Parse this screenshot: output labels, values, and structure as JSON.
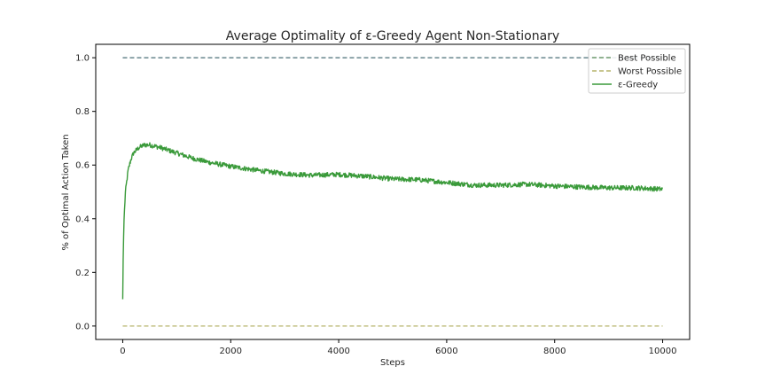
{
  "chart_data": {
    "type": "line",
    "title": "Average Optimality of ε-Greedy Agent Non-Stationary",
    "xlabel": "Steps",
    "ylabel": "% of Optimal Action Taken",
    "xlim": [
      -500,
      10500
    ],
    "ylim": [
      -0.05,
      1.05
    ],
    "xticks": [
      0,
      2000,
      4000,
      6000,
      8000,
      10000
    ],
    "yticks": [
      0.0,
      0.2,
      0.4,
      0.6,
      0.8,
      1.0
    ],
    "grid": false,
    "legend_position": "top-right",
    "series": [
      {
        "name": "Best Possible",
        "style": "dashed",
        "color": "#4a6f77",
        "legend_color": "#6e9a6e",
        "x": [
          0,
          10000
        ],
        "y": [
          1.0,
          1.0
        ]
      },
      {
        "name": "Worst Possible",
        "style": "dashed",
        "color": "#b6b36a",
        "x": [
          0,
          10000
        ],
        "y": [
          0.0,
          0.0
        ]
      },
      {
        "name": "ε-Greedy",
        "style": "solid",
        "color": "#3a9a3a",
        "x": [
          0,
          10,
          25,
          50,
          100,
          150,
          200,
          300,
          400,
          500,
          700,
          1000,
          1300,
          1600,
          2000,
          2500,
          3000,
          3500,
          4000,
          4500,
          5000,
          5500,
          6000,
          6500,
          7000,
          7500,
          8000,
          8500,
          9000,
          9500,
          10000
        ],
        "y": [
          0.1,
          0.28,
          0.4,
          0.5,
          0.58,
          0.62,
          0.645,
          0.665,
          0.675,
          0.675,
          0.665,
          0.645,
          0.625,
          0.61,
          0.595,
          0.58,
          0.568,
          0.562,
          0.565,
          0.558,
          0.548,
          0.545,
          0.535,
          0.525,
          0.525,
          0.528,
          0.522,
          0.518,
          0.515,
          0.515,
          0.51
        ]
      }
    ]
  }
}
